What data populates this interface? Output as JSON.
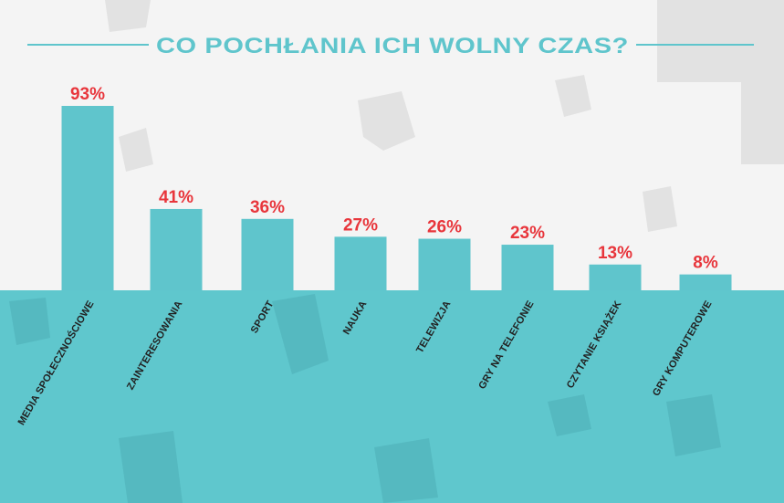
{
  "colors": {
    "background": "#f4f4f4",
    "band": "#5fc7cd",
    "bar": "#5fc5cc",
    "value_label": "#e8363c",
    "title": "#5fc5cc",
    "title_line": "#5fc5cc"
  },
  "chart_data": {
    "type": "bar",
    "title": "CO POCHŁANIA ICH WOLNY CZAS?",
    "categories": [
      "MEDIA SPOŁECZNOŚCIOWE",
      "ZAINTERESOWANIA",
      "SPORT",
      "NAUKA",
      "TELEWIZJA",
      "GRY NA TELEFONIE",
      "CZYTANIE KSIĄŻEK",
      "GRY KOMPUTEROWE"
    ],
    "values": [
      93,
      41,
      36,
      27,
      26,
      23,
      13,
      8
    ],
    "value_labels": [
      "93%",
      "41%",
      "36%",
      "27%",
      "26%",
      "23%",
      "13%",
      "8%"
    ],
    "ylim": [
      0,
      100
    ],
    "grid": false,
    "legend": "none"
  }
}
